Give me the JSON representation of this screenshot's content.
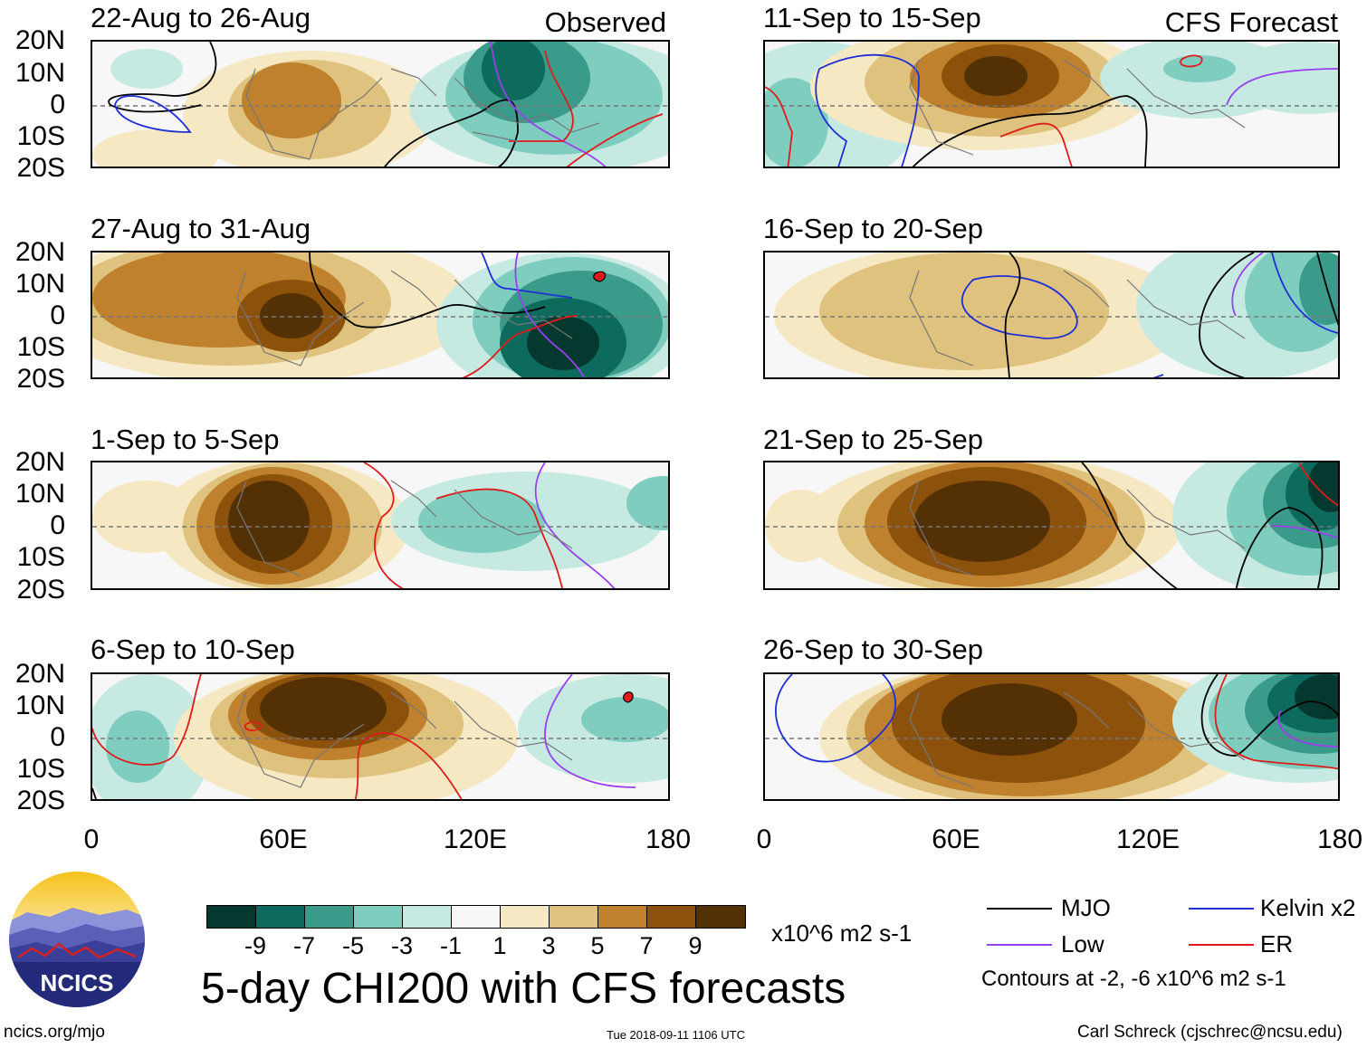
{
  "left_header": "Observed",
  "right_header": "CFS Forecast",
  "panels_left": [
    {
      "period": "22-Aug to 26-Aug"
    },
    {
      "period": "27-Aug to 31-Aug"
    },
    {
      "period": "1-Sep to 5-Sep"
    },
    {
      "period": "6-Sep to 10-Sep"
    }
  ],
  "panels_right": [
    {
      "period": "11-Sep to 15-Sep"
    },
    {
      "period": "16-Sep to 20-Sep"
    },
    {
      "period": "21-Sep to 25-Sep"
    },
    {
      "period": "26-Sep to 30-Sep"
    }
  ],
  "lat_labels": [
    "20N",
    "10N",
    "0",
    "10S",
    "20S"
  ],
  "lon_labels": [
    "0",
    "60E",
    "120E",
    "180"
  ],
  "colorbar": {
    "colors": [
      "#05392f",
      "#0d6b5d",
      "#3a9b8b",
      "#7fcdbf",
      "#c6eae2",
      "#f7f7f7",
      "#f6e8c3",
      "#dfc27d",
      "#bf812d",
      "#8c510a",
      "#543005"
    ],
    "ticks": [
      "-9",
      "-7",
      "-5",
      "-3",
      "-1",
      "1",
      "3",
      "5",
      "7",
      "9"
    ],
    "units": "x10^6 m2 s-1"
  },
  "main_title": "5-day CHI200 with CFS forecasts",
  "legend": {
    "items": [
      {
        "label": "MJO",
        "color": "#000000"
      },
      {
        "label": "Kelvin x2",
        "color": "#1f2fd8"
      },
      {
        "label": "Low",
        "color": "#9a3ff0"
      },
      {
        "label": "ER",
        "color": "#e01b1b"
      }
    ],
    "note": "Contours at -2, -6 x10^6 m2 s-1"
  },
  "logo_text": "NCICS",
  "footer": {
    "site": "ncics.org/mjo",
    "timestamp": "Tue 2018-09-11 1106 UTC",
    "author": "Carl Schreck (cjschrec@ncsu.edu)"
  }
}
